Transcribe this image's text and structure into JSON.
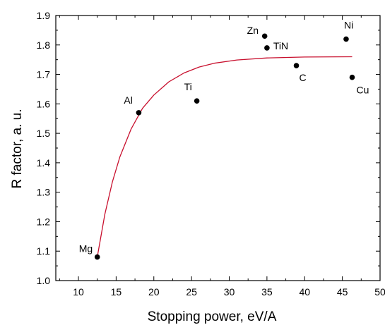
{
  "chart_data": {
    "type": "scatter",
    "xlabel": "Stopping power, eV/A",
    "ylabel": "R factor, a. u.",
    "xlim": [
      7,
      50
    ],
    "ylim": [
      1.0,
      1.9
    ],
    "xticks": [
      10,
      15,
      20,
      25,
      30,
      35,
      40,
      45,
      50
    ],
    "yticks": [
      1.0,
      1.1,
      1.2,
      1.3,
      1.4,
      1.5,
      1.6,
      1.7,
      1.8,
      1.9
    ],
    "grid": false,
    "points": [
      {
        "label": "Mg",
        "x": 12.5,
        "y": 1.08
      },
      {
        "label": "Al",
        "x": 18.0,
        "y": 1.57
      },
      {
        "label": "Ti",
        "x": 25.7,
        "y": 1.61
      },
      {
        "label": "Zn",
        "x": 34.7,
        "y": 1.83
      },
      {
        "label": "TiN",
        "x": 35.0,
        "y": 1.79
      },
      {
        "label": "C",
        "x": 38.9,
        "y": 1.73
      },
      {
        "label": "Ni",
        "x": 45.5,
        "y": 1.82
      },
      {
        "label": "Cu",
        "x": 46.3,
        "y": 1.69
      }
    ],
    "fit_curve": {
      "x": [
        12.5,
        13.5,
        14.5,
        15.5,
        17.0,
        18.5,
        20.0,
        22.0,
        24.0,
        26.0,
        28.0,
        31.0,
        35.0,
        40.0,
        46.3
      ],
      "y": [
        1.08,
        1.225,
        1.335,
        1.42,
        1.515,
        1.585,
        1.63,
        1.675,
        1.705,
        1.725,
        1.738,
        1.749,
        1.756,
        1.759,
        1.76
      ]
    },
    "colors": {
      "fit_line": "#c8102e",
      "points": "#000000",
      "axes": "#000000"
    }
  }
}
